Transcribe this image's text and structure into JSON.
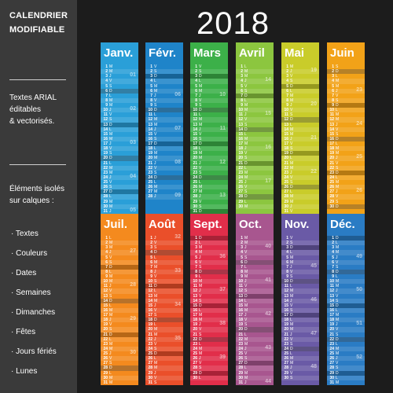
{
  "year": "2018",
  "sidebar": {
    "title1": "CALENDRIER",
    "title2": "MODIFIABLE",
    "text1": "Textes ARIAL",
    "text2": "éditables",
    "text3": "& vectorisés.",
    "text4": "Éléments isolés",
    "text5": "sur calques :",
    "bullets": [
      "· Textes",
      "· Couleurs",
      "· Dates",
      "· Semaines",
      "· Dimanches",
      "· Fêtes",
      "· Jours fériés",
      "· Lunes"
    ]
  },
  "months": [
    {
      "name": "Janv.",
      "color": "#2a9fd8",
      "days": 31,
      "start": 1,
      "weeks": [
        "01",
        "02",
        "03",
        "04",
        "05"
      ]
    },
    {
      "name": "Févr.",
      "color": "#1f84c9",
      "days": 28,
      "start": 4,
      "weeks": [
        "06",
        "07",
        "08",
        "09"
      ]
    },
    {
      "name": "Mars",
      "color": "#3cb049",
      "days": 31,
      "start": 4,
      "weeks": [
        "10",
        "11",
        "12",
        "13"
      ]
    },
    {
      "name": "Avril",
      "color": "#8cc63f",
      "days": 30,
      "start": 0,
      "weeks": [
        "14",
        "15",
        "16",
        "17",
        "18"
      ]
    },
    {
      "name": "Mai",
      "color": "#c9cc2a",
      "days": 31,
      "start": 2,
      "weeks": [
        "19",
        "20",
        "21",
        "22"
      ]
    },
    {
      "name": "Juin",
      "color": "#f2a218",
      "days": 30,
      "start": 5,
      "weeks": [
        "23",
        "24",
        "25",
        "26"
      ]
    },
    {
      "name": "Juil.",
      "color": "#f48a1e",
      "days": 31,
      "start": 0,
      "weeks": [
        "27",
        "28",
        "29",
        "30",
        "31"
      ]
    },
    {
      "name": "Août",
      "color": "#ea4f2a",
      "days": 31,
      "start": 3,
      "weeks": [
        "32",
        "33",
        "34",
        "35"
      ]
    },
    {
      "name": "Sept.",
      "color": "#e12e4a",
      "days": 30,
      "start": 6,
      "weeks": [
        "36",
        "37",
        "38",
        "39"
      ]
    },
    {
      "name": "Oct.",
      "color": "#a8568f",
      "days": 31,
      "start": 1,
      "weeks": [
        "40",
        "41",
        "42",
        "43",
        "44"
      ]
    },
    {
      "name": "Nov.",
      "color": "#6a5aa6",
      "days": 30,
      "start": 4,
      "weeks": [
        "45",
        "46",
        "47",
        "48"
      ]
    },
    {
      "name": "Déc.",
      "color": "#2a7cc4",
      "days": 31,
      "start": 6,
      "weeks": [
        "49",
        "50",
        "51",
        "52"
      ]
    }
  ],
  "weekday_letters": [
    "L",
    "M",
    "M",
    "J",
    "V",
    "S",
    "D"
  ]
}
